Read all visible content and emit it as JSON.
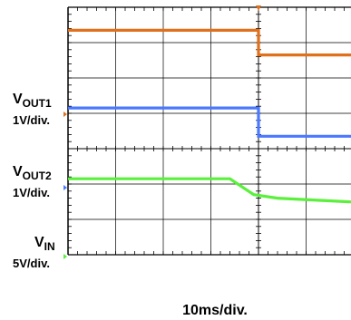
{
  "labels": {
    "vout1_v": "V",
    "vout1_sub": "OUT1",
    "vout1_scale": "1V/div.",
    "vout2_v": "V",
    "vout2_sub": "OUT2",
    "vout2_scale": "1V/div.",
    "vin_v": "V",
    "vin_sub": "IN",
    "vin_scale": "5V/div.",
    "time_scale": "10ms/div."
  },
  "colors": {
    "vout1": "#e0701c",
    "vout2": "#4a78ff",
    "vin": "#5af03c",
    "grid": "#000000",
    "background": "#ffffff"
  },
  "chart_data": {
    "type": "line",
    "grid": true,
    "divisions": {
      "x": 8,
      "y": 7
    },
    "x_unit": "div",
    "y_unit": "div",
    "series": [
      {
        "name": "VOUT1",
        "x": [
          0,
          4.0,
          4.0,
          8
        ],
        "y": [
          6.35,
          6.35,
          5.65,
          5.65
        ]
      },
      {
        "name": "VOUT2",
        "x": [
          0,
          4.0,
          4.0,
          8
        ],
        "y": [
          4.15,
          4.15,
          3.35,
          3.35
        ]
      },
      {
        "name": "VIN",
        "x": [
          0,
          3.4,
          3.9,
          4.4,
          8
        ],
        "y": [
          2.15,
          2.15,
          1.7,
          1.6,
          1.35
        ]
      }
    ]
  }
}
